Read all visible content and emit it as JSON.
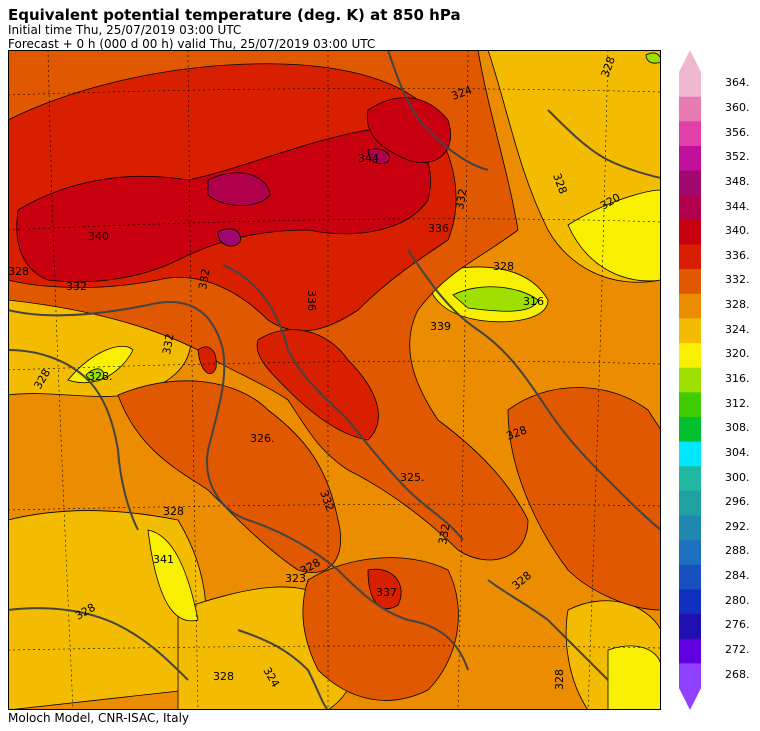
{
  "header": {
    "title": "Equivalent potential temperature (deg. K) at 850 hPa",
    "initial_time": "Initial time  Thu, 25/07/2019  03:00 UTC",
    "forecast": "Forecast  +   0 h  (000 d 00 h)  valid Thu, 25/07/2019 03:00 UTC"
  },
  "footer": {
    "credit": "Moloch Model, CNR-ISAC, Italy"
  },
  "colorbar": {
    "levels": [
      {
        "label": "364.",
        "color": "#f0b8d0"
      },
      {
        "label": "360.",
        "color": "#e87ab4"
      },
      {
        "label": "356.",
        "color": "#e040a8"
      },
      {
        "label": "352.",
        "color": "#c0109c"
      },
      {
        "label": "348.",
        "color": "#a00870"
      },
      {
        "label": "344.",
        "color": "#b0004c"
      },
      {
        "label": "340.",
        "color": "#c80010"
      },
      {
        "label": "336.",
        "color": "#d82000"
      },
      {
        "label": "332.",
        "color": "#e05800"
      },
      {
        "label": "328.",
        "color": "#ec8c00"
      },
      {
        "label": "324.",
        "color": "#f4bc00"
      },
      {
        "label": "320.",
        "color": "#f8f000"
      },
      {
        "label": "316.",
        "color": "#a0e000"
      },
      {
        "label": "312.",
        "color": "#40cc00"
      },
      {
        "label": "308.",
        "color": "#00c030"
      },
      {
        "label": "304.",
        "color": "#00e8ff"
      },
      {
        "label": "300.",
        "color": "#20b8a0"
      },
      {
        "label": "296.",
        "color": "#20a0a0"
      },
      {
        "label": "292.",
        "color": "#2088b0"
      },
      {
        "label": "288.",
        "color": "#2070c0"
      },
      {
        "label": "284.",
        "color": "#1850c0"
      },
      {
        "label": "280.",
        "color": "#1030c0"
      },
      {
        "label": "276.",
        "color": "#2010b0"
      },
      {
        "label": "272.",
        "color": "#6000e0"
      },
      {
        "label": "268.",
        "color": "#9040ff"
      }
    ]
  },
  "map": {
    "contour_labels": [
      "344",
      "340",
      "336",
      "336",
      "332",
      "332",
      "332",
      "332",
      "332",
      "332",
      "328",
      "328",
      "328",
      "328",
      "328",
      "328",
      "328",
      "328",
      "328",
      "328",
      "328",
      "328",
      "324",
      "324",
      "320",
      "316",
      "339",
      "337",
      "341",
      "326.",
      "325.",
      "323.",
      "328."
    ]
  }
}
